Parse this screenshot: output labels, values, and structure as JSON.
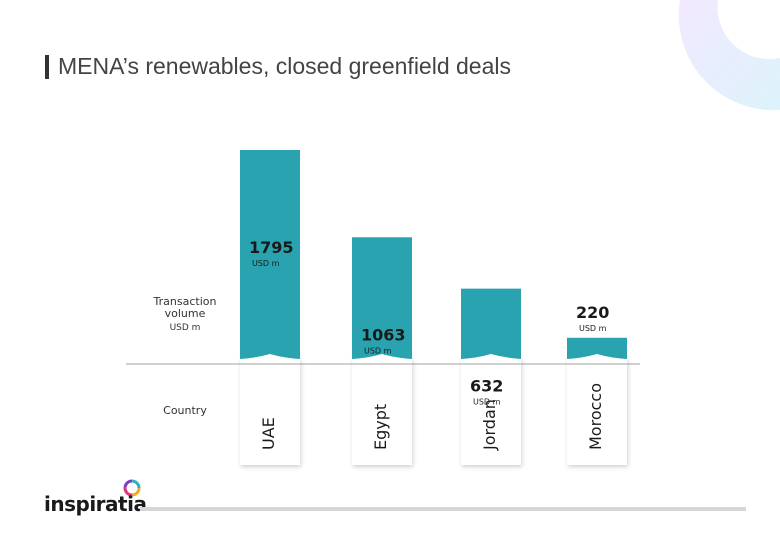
{
  "header": {
    "title": "MENA’s renewables, closed greenfield deals"
  },
  "brand": {
    "name": "inspiratia"
  },
  "row_labels": {
    "ylabel_line1": "Transaction",
    "ylabel_line2": "volume",
    "ylabel_unit": "USD m",
    "country": "Country"
  },
  "colors": {
    "bar": "#2aa3b0",
    "axis": "#a0a0a0",
    "decoration": "#e8f0ff"
  },
  "chart_data": {
    "type": "bar",
    "categories": [
      "UAE",
      "Egypt",
      "Jordan",
      "Morocco"
    ],
    "values": [
      1795,
      1063,
      632,
      220
    ],
    "value_labels": [
      "1795",
      "1063",
      "632",
      "220"
    ],
    "unit_label": "USD m",
    "ylabel": "Transaction volume USD m",
    "xlabel": "Country",
    "grid": false,
    "legend": "none"
  }
}
